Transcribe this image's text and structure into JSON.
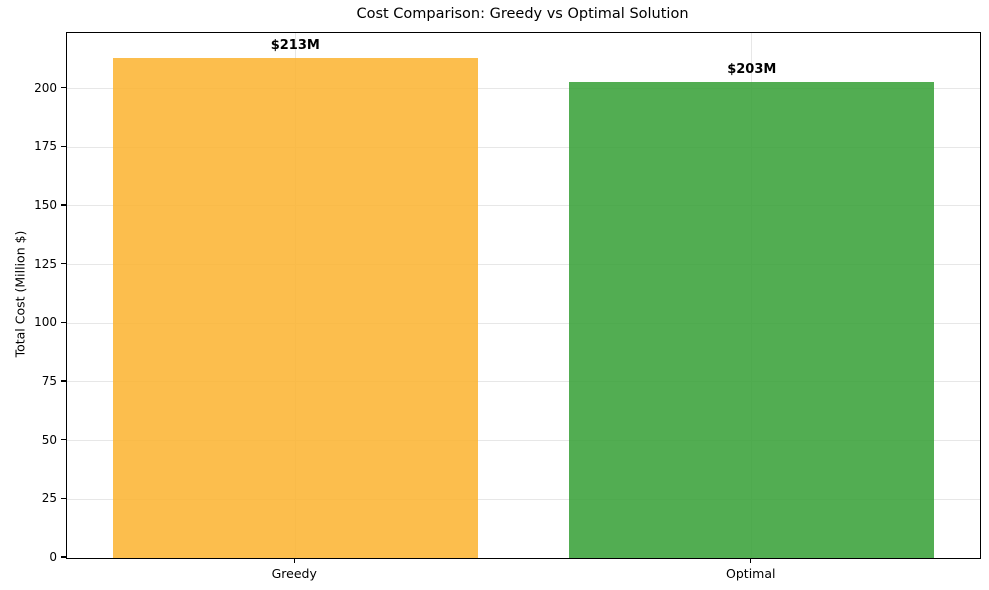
{
  "chart_data": {
    "type": "bar",
    "title": "Cost Comparison: Greedy vs Optimal Solution",
    "ylabel": "Total Cost (Million $)",
    "xlabel": "",
    "categories": [
      "Greedy",
      "Optimal"
    ],
    "values": [
      213,
      203
    ],
    "bar_labels": [
      "$213M",
      "$203M"
    ],
    "bar_colors": [
      "rgba(251,179,46,0.85)",
      "rgba(52,159,52,0.85)"
    ],
    "bar_colors_observed_hex": [
      "#fcbe4d",
      "#52ad52"
    ],
    "bar_width_fraction": 0.8,
    "ylim": [
      0,
      223.7
    ],
    "yticks": [
      0,
      25,
      50,
      75,
      100,
      125,
      150,
      175,
      200
    ],
    "grid": true,
    "grid_color": "#e7e7e7",
    "axis_color": "#000000",
    "text_color": "#000000",
    "background": "#ffffff"
  }
}
